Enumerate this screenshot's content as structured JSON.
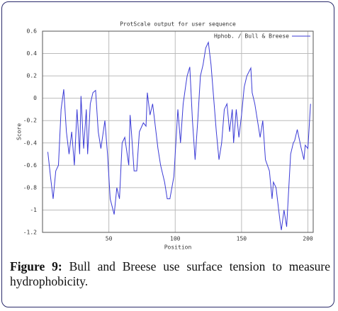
{
  "chart_data": {
    "type": "line",
    "title": "ProtScale output for user sequence",
    "xlabel": "Position",
    "ylabel": "Score",
    "xlim": [
      0,
      204
    ],
    "xticks": [
      50,
      100,
      150,
      200
    ],
    "ylim": [
      -1.2,
      0.6
    ],
    "yticks": [
      0.6,
      0.4,
      0.2,
      0,
      -0.2,
      -0.4,
      -0.6,
      -0.8,
      -1,
      -1.2
    ],
    "grid": true,
    "legend": "upper right",
    "series": [
      {
        "name": "Hphob. / Bull & Breese",
        "color": "#3b3bd6",
        "x": [
          4,
          6,
          8,
          10,
          12,
          14,
          16,
          18,
          20,
          22,
          24,
          26,
          28,
          29,
          31,
          33,
          34,
          36,
          38,
          40,
          42,
          44,
          47,
          49,
          51,
          54,
          56,
          58,
          60,
          62,
          65,
          66,
          67,
          69,
          71,
          73,
          76,
          78,
          79,
          81,
          83,
          85,
          87,
          89,
          92,
          94,
          96,
          99,
          101,
          102,
          104,
          106,
          108,
          109,
          111,
          113,
          115,
          117,
          119,
          121,
          123,
          125,
          127,
          129,
          131,
          133,
          135,
          137,
          139,
          141,
          143,
          144,
          146,
          148,
          150,
          152,
          154,
          157,
          158,
          160,
          162,
          164,
          166,
          168,
          171,
          173,
          174,
          176,
          179,
          180,
          182,
          184,
          187,
          189,
          190,
          192,
          195,
          197,
          198,
          200,
          202
        ],
        "values": [
          -0.48,
          -0.7,
          -0.9,
          -0.65,
          -0.6,
          -0.1,
          0.08,
          -0.3,
          -0.5,
          -0.3,
          -0.6,
          -0.1,
          -0.5,
          0.02,
          -0.45,
          -0.1,
          -0.5,
          -0.05,
          0.05,
          0.07,
          -0.3,
          -0.45,
          -0.2,
          -0.5,
          -0.9,
          -1.04,
          -0.8,
          -0.9,
          -0.4,
          -0.35,
          -0.6,
          -0.15,
          -0.3,
          -0.65,
          -0.65,
          -0.3,
          -0.22,
          -0.25,
          0.05,
          -0.15,
          -0.05,
          -0.25,
          -0.45,
          -0.6,
          -0.75,
          -0.9,
          -0.9,
          -0.7,
          -0.3,
          -0.1,
          -0.4,
          -0.05,
          0.12,
          0.2,
          0.28,
          -0.2,
          -0.55,
          -0.2,
          0.2,
          0.3,
          0.45,
          0.5,
          0.3,
          0.0,
          -0.3,
          -0.55,
          -0.4,
          -0.1,
          -0.05,
          -0.3,
          -0.1,
          -0.4,
          -0.1,
          -0.35,
          -0.15,
          0.1,
          0.2,
          0.27,
          0.05,
          -0.05,
          -0.2,
          -0.35,
          -0.2,
          -0.55,
          -0.65,
          -0.9,
          -0.75,
          -0.8,
          -1.1,
          -1.18,
          -1.0,
          -1.15,
          -0.5,
          -0.4,
          -0.38,
          -0.28,
          -0.45,
          -0.55,
          -0.42,
          -0.45,
          -0.05
        ]
      }
    ]
  },
  "caption": {
    "label": "Figure 9:",
    "text": "Bull and Breese use surface tension to measure hydrophobicity."
  }
}
